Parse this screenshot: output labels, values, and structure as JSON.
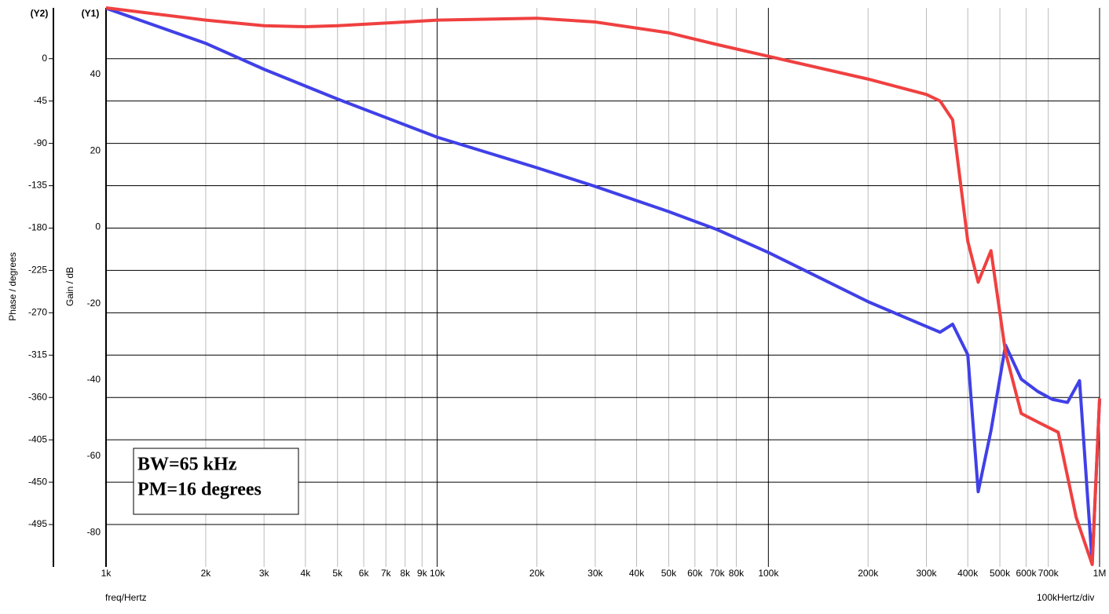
{
  "chart_data": {
    "type": "line",
    "y_axis_tag": "(Y1)",
    "y2_axis_tag": "(Y2)",
    "ylabel": "Gain / dB",
    "y2label": "Phase / degrees",
    "xlabel": "freq/Hertz",
    "xscale_note": "100kHertz/div",
    "annotations": [
      "BW=65 kHz",
      "PM=16 degrees"
    ],
    "xscale": "log",
    "grid": true,
    "xlim": [
      1000,
      1000000
    ],
    "xticks": [
      {
        "value": 1000,
        "label": "1k"
      },
      {
        "value": 2000,
        "label": "2k"
      },
      {
        "value": 3000,
        "label": "3k"
      },
      {
        "value": 4000,
        "label": "4k"
      },
      {
        "value": 5000,
        "label": "5k"
      },
      {
        "value": 6000,
        "label": "6k"
      },
      {
        "value": 7000,
        "label": "7k"
      },
      {
        "value": 8000,
        "label": "8k"
      },
      {
        "value": 9000,
        "label": "9k"
      },
      {
        "value": 10000,
        "label": "10k"
      },
      {
        "value": 20000,
        "label": "20k"
      },
      {
        "value": 30000,
        "label": "30k"
      },
      {
        "value": 40000,
        "label": "40k"
      },
      {
        "value": 50000,
        "label": "50k"
      },
      {
        "value": 60000,
        "label": "60k"
      },
      {
        "value": 70000,
        "label": "70k"
      },
      {
        "value": 80000,
        "label": "80k"
      },
      {
        "value": 100000,
        "label": "100k"
      },
      {
        "value": 200000,
        "label": "200k"
      },
      {
        "value": 300000,
        "label": "300k"
      },
      {
        "value": 400000,
        "label": "400k"
      },
      {
        "value": 500000,
        "label": "500k"
      },
      {
        "value": 600000,
        "label": "600k"
      },
      {
        "value": 700000,
        "label": "700k"
      },
      {
        "value": 1000000,
        "label": "1M"
      }
    ],
    "ylim": [
      -89,
      57.5
    ],
    "yticks": [
      40,
      20,
      0,
      -20,
      -40,
      -60,
      -80
    ],
    "y2lim": [
      -540,
      54
    ],
    "y2ticks": [
      0,
      -45,
      -90,
      -135,
      -180,
      -225,
      -270,
      -315,
      -360,
      -405,
      -450,
      -495
    ],
    "series": [
      {
        "name": "Gain",
        "color": "#4040e8",
        "axis": "y",
        "x": [
          1000,
          2000,
          3000,
          5000,
          10000,
          20000,
          30000,
          50000,
          70000,
          100000,
          200000,
          300000,
          330000,
          360000,
          400000,
          430000,
          470000,
          520000,
          580000,
          650000,
          720000,
          800000,
          870000,
          950000,
          1000000
        ],
        "values": [
          57.4,
          48.2,
          41.4,
          33.6,
          23.6,
          15.6,
          10.7,
          4.1,
          -0.6,
          -6.6,
          -19.5,
          -26.0,
          -27.5,
          -25.4,
          -33.4,
          -69.3,
          -53.3,
          -30.9,
          -39.8,
          -43.0,
          -45.1,
          -45.9,
          -40.2,
          -88.1,
          -45.1
        ]
      },
      {
        "name": "Phase",
        "color": "#f04040",
        "axis": "y2",
        "x": [
          1000,
          2000,
          3000,
          4000,
          5000,
          8000,
          10000,
          20000,
          30000,
          50000,
          70000,
          100000,
          200000,
          300000,
          330000,
          360000,
          400000,
          430000,
          470000,
          520000,
          580000,
          650000,
          750000,
          850000,
          950000,
          1000000
        ],
        "values": [
          54,
          41,
          35,
          34,
          35,
          39,
          41,
          43,
          39,
          27.5,
          15,
          2.5,
          -21.7,
          -38,
          -45,
          -65,
          -194,
          -237.5,
          -204,
          -312,
          -377,
          -386,
          -397,
          -487.5,
          -537.5,
          -361
        ]
      }
    ]
  }
}
